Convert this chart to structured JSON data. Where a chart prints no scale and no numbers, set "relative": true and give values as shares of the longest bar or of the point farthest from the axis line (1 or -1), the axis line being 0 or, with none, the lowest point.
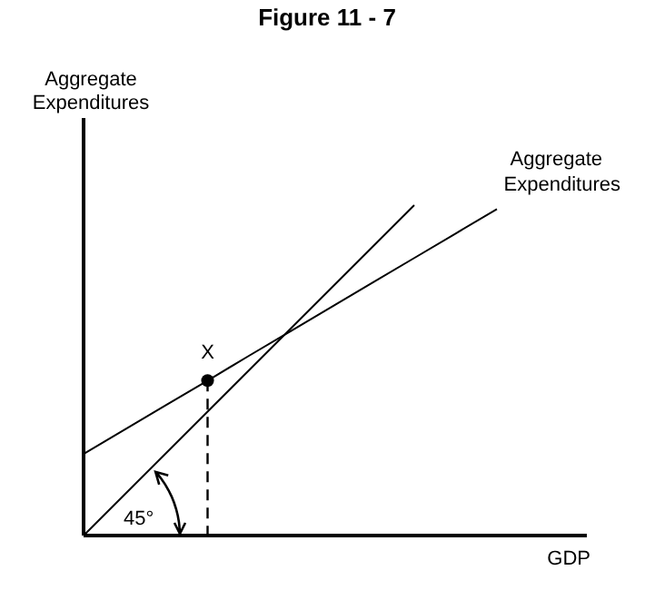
{
  "chart_data": {
    "type": "line",
    "title": "Figure 11 - 7",
    "xlabel": "GDP",
    "ylabel": "Aggregate Expenditures",
    "relative": true,
    "legend": false,
    "categories": [
      null,
      null,
      null,
      null,
      null,
      null,
      null,
      null,
      null,
      null,
      null
    ],
    "series": [
      {
        "color": "#000000",
        "values": [
          0,
          0.125,
          0.25,
          0.375,
          0.5,
          0.625,
          0.75,
          0.875,
          1,
          null,
          null
        ]
      },
      {
        "name": "Aggregate Expenditures",
        "color": "#000000",
        "values": [
          0.247,
          0.321,
          0.395,
          0.469,
          0.544,
          0.618,
          0.692,
          0.766,
          0.84,
          0.914,
          0.988
        ]
      },
      {
        "name": "X",
        "color": "#000000",
        "marker": "circle",
        "line_style": "dashed",
        "values": [
          null,
          null,
          null,
          0.469,
          null,
          null,
          null,
          null,
          null,
          null,
          null
        ]
      }
    ],
    "annotations": [
      "45°"
    ]
  }
}
